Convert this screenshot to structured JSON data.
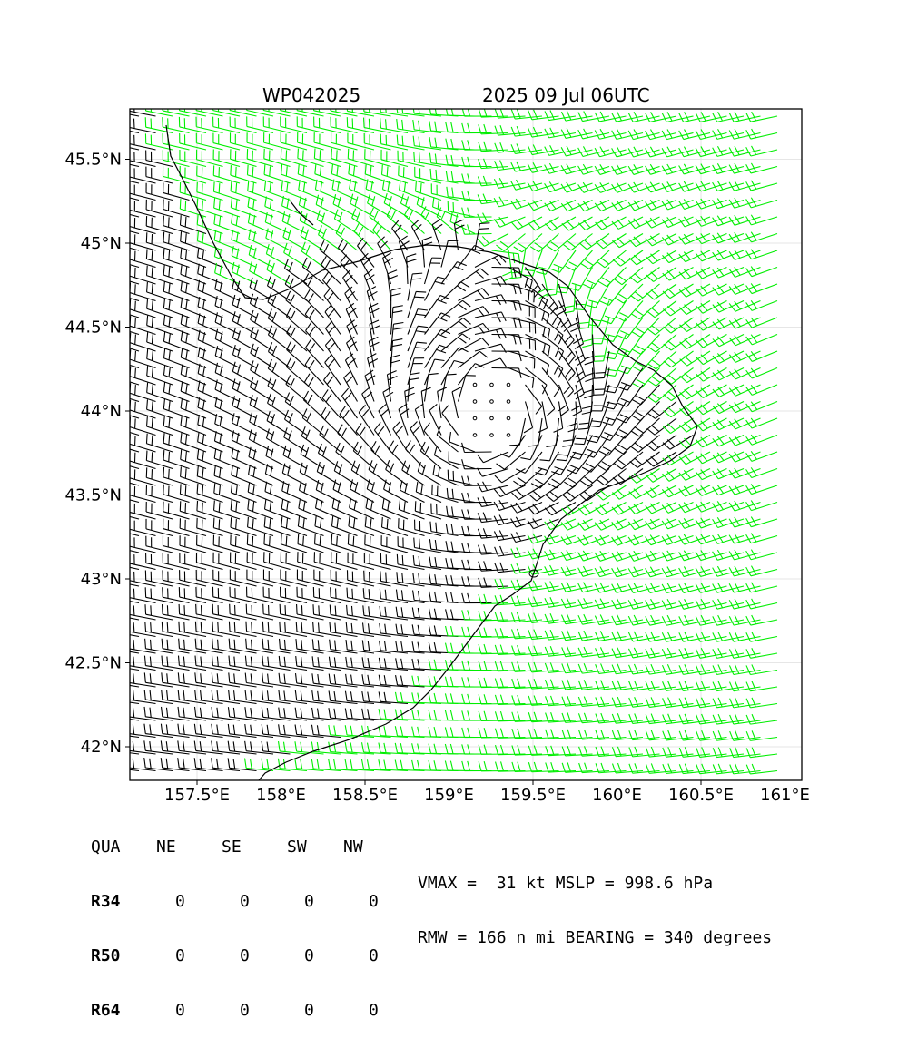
{
  "header": {
    "storm_id": "WP042025",
    "datetime": "2025 09 Jul 06UTC"
  },
  "map": {
    "lon_range": [
      157.1,
      161.1
    ],
    "lat_range": [
      41.8,
      45.8
    ],
    "x_ticks": [
      "157.5°E",
      "158°E",
      "158.5°E",
      "159°E",
      "159.5°E",
      "160°E",
      "160.5°E",
      "161°E"
    ],
    "x_tick_values": [
      157.5,
      158.0,
      158.5,
      159.0,
      159.5,
      160.0,
      160.5,
      161.0
    ],
    "y_ticks": [
      "42°N",
      "42.5°N",
      "43°N",
      "43.5°N",
      "44°N",
      "44.5°N",
      "45°N",
      "45.5°N"
    ],
    "y_tick_values": [
      42.0,
      42.5,
      43.0,
      43.5,
      44.0,
      44.5,
      45.0,
      45.5
    ],
    "storm_center": [
      159.25,
      44.0
    ],
    "barb_colors": {
      "inside": "#000000",
      "outside": "#00ee00"
    },
    "coastline_color": "#000000"
  },
  "radii_table": {
    "header": [
      "QUA",
      "NE",
      "SE",
      "SW",
      "NW"
    ],
    "rows": [
      {
        "label": "R34",
        "values": [
          "0",
          "0",
          "0",
          "0"
        ]
      },
      {
        "label": "R50",
        "values": [
          "0",
          "0",
          "0",
          "0"
        ]
      },
      {
        "label": "R64",
        "values": [
          "0",
          "0",
          "0",
          "0"
        ]
      }
    ]
  },
  "stats": {
    "line1": "VMAX =  31 kt MSLP = 998.6 hPa",
    "line2": "RMW = 166 n mi BEARING = 340 degrees"
  }
}
